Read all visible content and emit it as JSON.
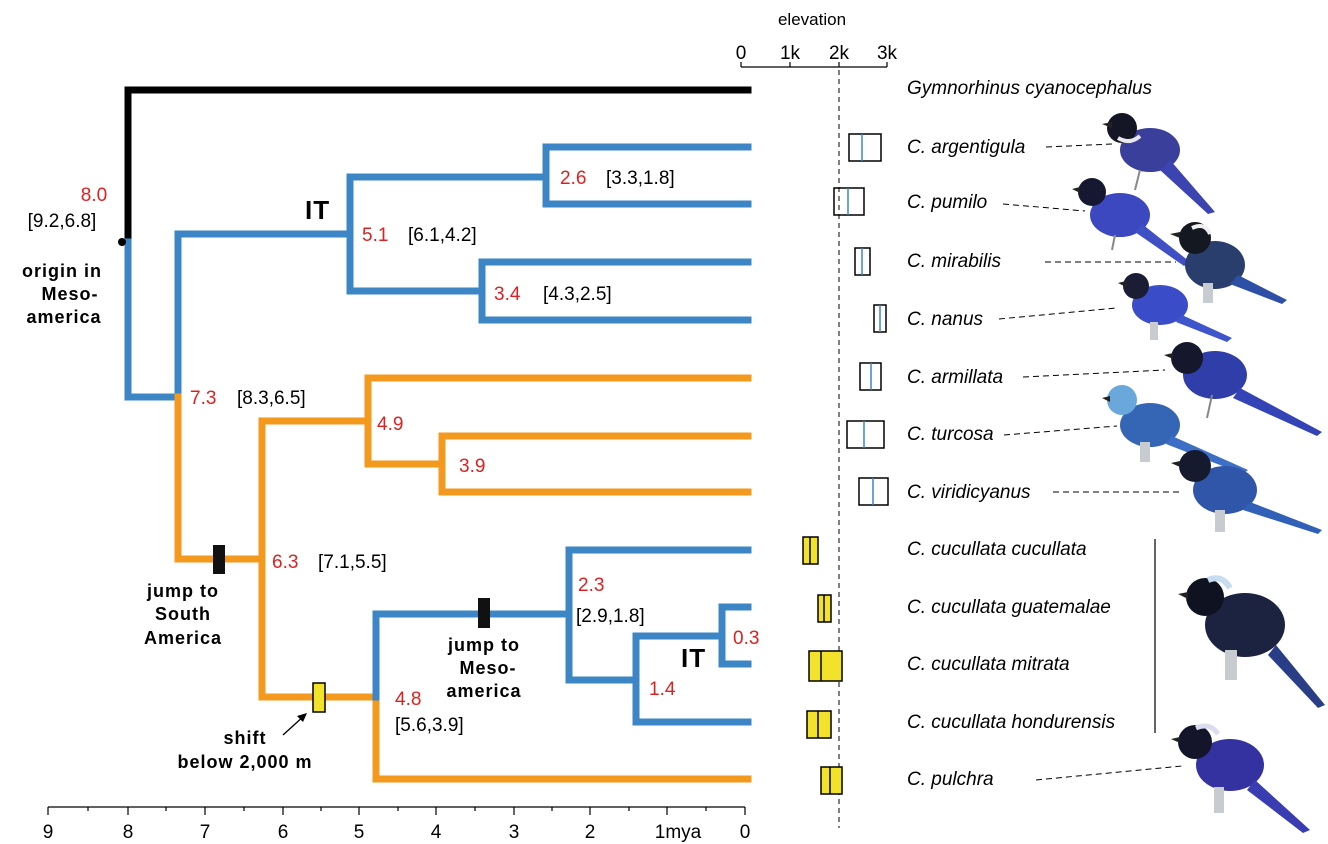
{
  "elevation_axis": {
    "title": "elevation",
    "ticks": [
      "0",
      "1k",
      "2k",
      "3k"
    ],
    "threshold_m": 2000
  },
  "time_axis": {
    "ticks": [
      "9",
      "8",
      "7",
      "6",
      "5",
      "4",
      "3",
      "2",
      "1mya",
      "0"
    ]
  },
  "taxa": [
    "Gymnorhinus cyanocephalus",
    "C. argentigula",
    "C. pumilo",
    "C. mirabilis",
    "C. nanus",
    "C. armillata",
    "C. turcosa",
    "C. viridicyanus",
    "C. cucullata cucullata",
    "C. cucullata guatemalae",
    "C. cucullata mitrata",
    "C. cucullata hondurensis",
    "C. pulchra"
  ],
  "nodes": {
    "root": {
      "age": "8.0",
      "ci": "[9.2,6.8]"
    },
    "n73": {
      "age": "7.3",
      "ci": "[8.3,6.5]"
    },
    "n63": {
      "age": "6.3",
      "ci": "[7.1,5.5]"
    },
    "n51": {
      "age": "5.1",
      "ci": "[6.1,4.2]"
    },
    "n49": {
      "age": "4.9"
    },
    "n48": {
      "age": "4.8",
      "ci": "[5.6,3.9]"
    },
    "n39": {
      "age": "3.9"
    },
    "n34": {
      "age": "3.4",
      "ci": "[4.3,2.5]"
    },
    "n26": {
      "age": "2.6",
      "ci": "[3.3,1.8]"
    },
    "n23": {
      "age": "2.3",
      "ci": "[2.9,1.8]"
    },
    "n14": {
      "age": "1.4"
    },
    "n03": {
      "age": "0.3"
    }
  },
  "annotations": {
    "it_upper": "IT",
    "it_lower": "IT",
    "origin": [
      "origin in",
      "Meso-",
      "america"
    ],
    "jump_south": [
      "jump to",
      "South",
      "America"
    ],
    "jump_meso": [
      "jump to",
      "Meso-",
      "america"
    ],
    "shift": [
      "shift",
      "below 2,000 m"
    ]
  },
  "colors": {
    "highland_lineage": "#3d86c6",
    "lowland_lineage": "#f39a1e",
    "outgroup": "#000000",
    "node_age": "#e02020",
    "lowland_range_fill": "#f2e32a"
  }
}
